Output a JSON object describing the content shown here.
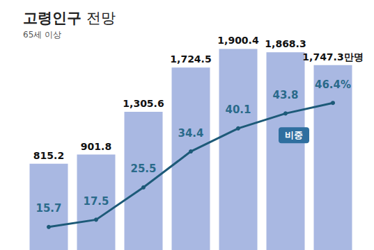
{
  "chart_data": {
    "type": "bar",
    "title": "고령인구 전망",
    "subtitle": "65세 이상",
    "categories": [
      null,
      null,
      null,
      null,
      null,
      null,
      null
    ],
    "series": [
      {
        "type": "bar",
        "color": "#a9b8e2",
        "values": [
          815.2,
          901.8,
          1305.6,
          1724.5,
          1900.4,
          1868.3,
          1747.3
        ],
        "value_labels": [
          "815.2",
          "901.8",
          "1,305.6",
          "1,724.5",
          "1,900.4",
          "1,868.3",
          "1,747.3만명"
        ]
      },
      {
        "name": "비중",
        "type": "line",
        "axis": "y2",
        "color": "#1d5a78",
        "marker": "circle",
        "values": [
          15.7,
          17.5,
          25.5,
          34.4,
          40.1,
          43.8,
          46.4
        ],
        "value_labels": [
          "15.7",
          "17.5",
          "25.5",
          "34.4",
          "40.1",
          "43.8",
          "46.4%"
        ]
      }
    ],
    "ylim": [
      0,
      2100
    ],
    "yticks": [
      0,
      700,
      1400,
      2100
    ],
    "y2lim": [
      10,
      65
    ],
    "y2ticks": [
      10,
      65
    ],
    "data_labels": true,
    "tick_labels": false,
    "grid": false
  }
}
